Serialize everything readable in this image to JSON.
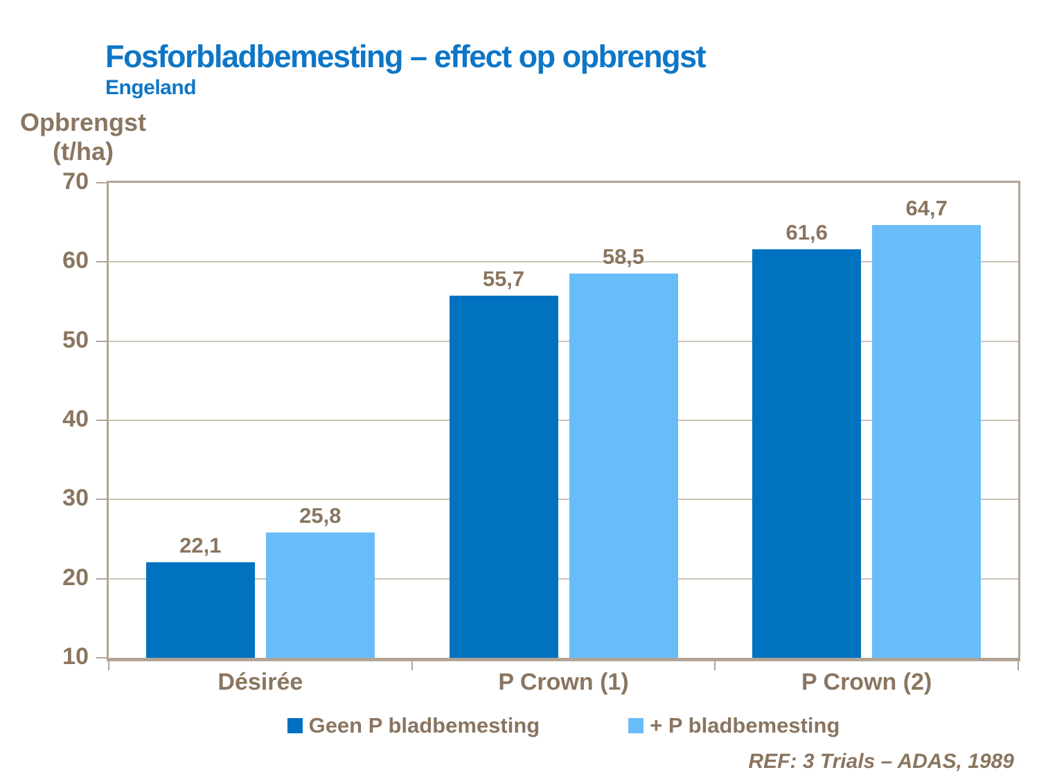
{
  "title": "Fosforbladbemesting – effect op opbrengst",
  "subtitle": "Engeland",
  "y_axis_label": {
    "line1": "Opbrengst",
    "line2": "(t/ha)"
  },
  "footer": "REF: 3 Trials – ADAS, 1989",
  "colors": {
    "title_blue": "#0e76c6",
    "axis_text_brown": "#8a7560",
    "frame_taupe": "#b2a494",
    "gridline_taupe": "#ccc2b3",
    "series_dark_blue": "#0072c0",
    "series_light_blue": "#68bcf8"
  },
  "chart_data": {
    "type": "bar",
    "categories": [
      "Désirée",
      "P Crown (1)",
      "P Crown (2)"
    ],
    "series": [
      {
        "name": "Geen P bladbemesting",
        "color": "#0072c0",
        "values": [
          22.1,
          55.7,
          61.6
        ]
      },
      {
        "name": "+ P bladbemesting",
        "color": "#68bcf8",
        "values": [
          25.8,
          58.5,
          64.7
        ]
      }
    ],
    "title": "Fosforbladbemesting – effect op opbrengst",
    "xlabel": "",
    "ylabel": "Opbrengst (t/ha)",
    "ylim": [
      10,
      70
    ],
    "ytick_step": 10,
    "grid": true,
    "legend_position": "bottom",
    "decimal_separator": ","
  }
}
